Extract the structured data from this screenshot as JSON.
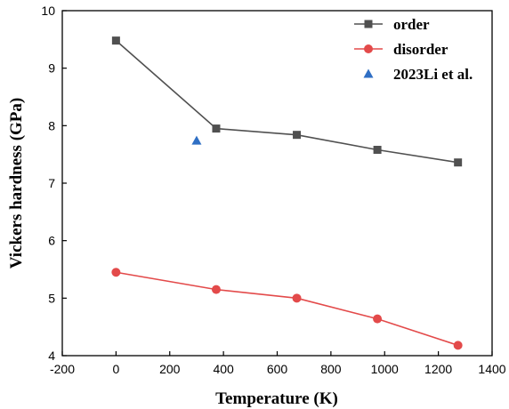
{
  "chart_data": {
    "type": "line",
    "title": "",
    "xlabel": "Temperature (K)",
    "ylabel": "Vickers hardness (GPa)",
    "xlim": [
      -200,
      1400
    ],
    "ylim": [
      4,
      10
    ],
    "x_ticks": [
      -200,
      0,
      200,
      400,
      600,
      800,
      1000,
      1200,
      1400
    ],
    "y_ticks": [
      4,
      5,
      6,
      7,
      8,
      9,
      10
    ],
    "grid": false,
    "legend_position": "top-right",
    "series": [
      {
        "name": "order",
        "color": "#505050",
        "marker": "square",
        "line": true,
        "x": [
          0,
          373,
          673,
          973,
          1273
        ],
        "y": [
          9.48,
          7.95,
          7.84,
          7.58,
          7.36
        ]
      },
      {
        "name": "disorder",
        "color": "#e34a4a",
        "marker": "circle",
        "line": true,
        "x": [
          0,
          373,
          673,
          973,
          1273
        ],
        "y": [
          5.45,
          5.15,
          5.0,
          4.64,
          4.18
        ]
      },
      {
        "name": "2023Li et al.",
        "color": "#2f6fc4",
        "marker": "triangle",
        "line": false,
        "x": [
          300
        ],
        "y": [
          7.74
        ]
      }
    ]
  }
}
